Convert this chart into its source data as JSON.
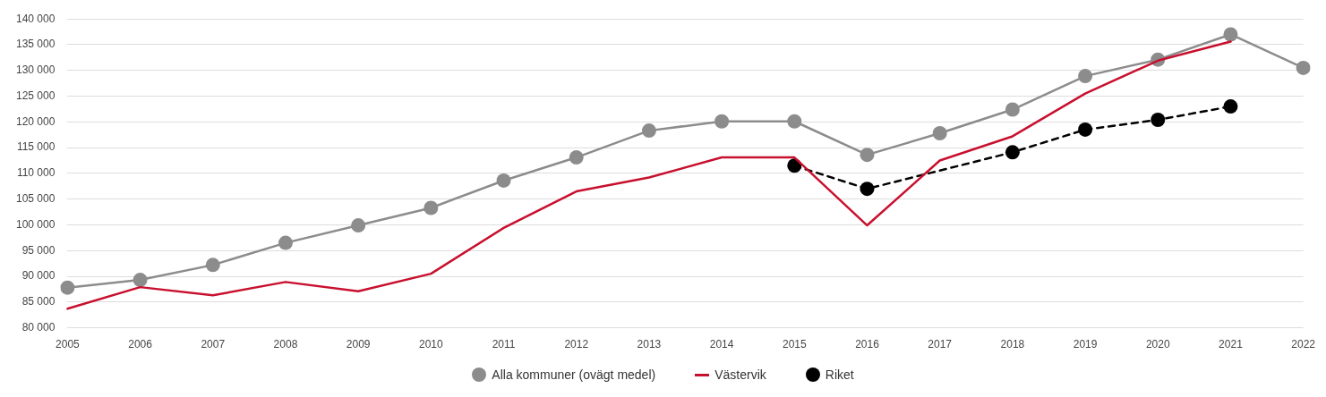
{
  "chart_data": {
    "type": "line",
    "categories": [
      "2005",
      "2006",
      "2007",
      "2008",
      "2009",
      "2010",
      "2011",
      "2012",
      "2013",
      "2014",
      "2015",
      "2016",
      "2017",
      "2018",
      "2019",
      "2020",
      "2021",
      "2022"
    ],
    "series": [
      {
        "name": "Alla kommuner (ovägt medel)",
        "color": "#8c8c8c",
        "marker": "circle",
        "line_style": "solid",
        "values": [
          87800,
          89300,
          92200,
          96500,
          99900,
          103300,
          108600,
          113100,
          118300,
          120100,
          120100,
          113600,
          117800,
          122400,
          128900,
          132100,
          137000,
          130500
        ]
      },
      {
        "name": "Västervik",
        "color": "#c8102e",
        "marker": "none",
        "line_style": "solid",
        "values": [
          83700,
          87900,
          86300,
          88900,
          87100,
          90500,
          99400,
          106500,
          109200,
          113100,
          113100,
          99900,
          112500,
          117200,
          125500,
          131900,
          135600,
          null
        ]
      },
      {
        "name": "Riket",
        "color": "#000000",
        "marker": "circle",
        "line_style": "dashed",
        "values": [
          null,
          null,
          null,
          null,
          null,
          null,
          null,
          null,
          null,
          null,
          111500,
          107000,
          null,
          114100,
          118500,
          120400,
          123000,
          null
        ]
      }
    ],
    "ylim": [
      80000,
      140000
    ],
    "yticks": [
      {
        "value": 80000,
        "label": "80 000"
      },
      {
        "value": 85000,
        "label": "85 000"
      },
      {
        "value": 90000,
        "label": "90 000"
      },
      {
        "value": 95000,
        "label": "95 000"
      },
      {
        "value": 100000,
        "label": "100 000"
      },
      {
        "value": 105000,
        "label": "105 000"
      },
      {
        "value": 110000,
        "label": "110 000"
      },
      {
        "value": 115000,
        "label": "115 000"
      },
      {
        "value": 120000,
        "label": "120 000"
      },
      {
        "value": 125000,
        "label": "125 000"
      },
      {
        "value": 130000,
        "label": "130 000"
      },
      {
        "value": 135000,
        "label": "135 000"
      },
      {
        "value": 140000,
        "label": "140 000"
      }
    ],
    "grid": "y",
    "legend": "bottom"
  }
}
